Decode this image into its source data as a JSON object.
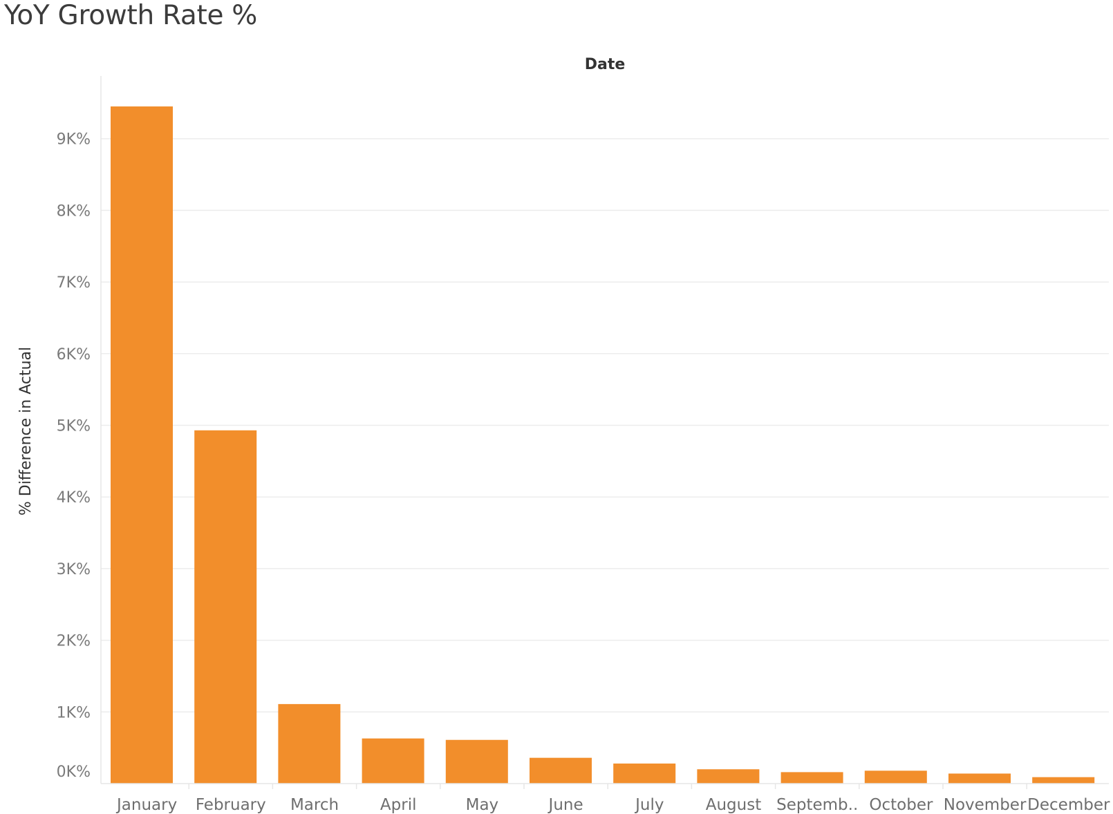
{
  "chart_data": {
    "type": "bar",
    "title": "YoY Growth Rate %",
    "xlabel": "Date",
    "ylabel": "% Difference in Actual",
    "categories": [
      "January",
      "February",
      "March",
      "April",
      "May",
      "June",
      "July",
      "August",
      "Septemb..",
      "October",
      "November",
      "December"
    ],
    "values": [
      9450,
      4930,
      1110,
      630,
      610,
      360,
      280,
      200,
      160,
      180,
      140,
      90
    ],
    "unit": "%",
    "ylim": [
      0,
      9900
    ],
    "yticks": [
      0,
      1000,
      2000,
      3000,
      4000,
      5000,
      6000,
      7000,
      8000,
      9000
    ],
    "ytick_labels": [
      "0K%",
      "1K%",
      "2K%",
      "3K%",
      "4K%",
      "5K%",
      "6K%",
      "7K%",
      "8K%",
      "9K%"
    ],
    "grid": true,
    "legend": "none",
    "colors": {
      "bar": "#f28e2b"
    }
  }
}
